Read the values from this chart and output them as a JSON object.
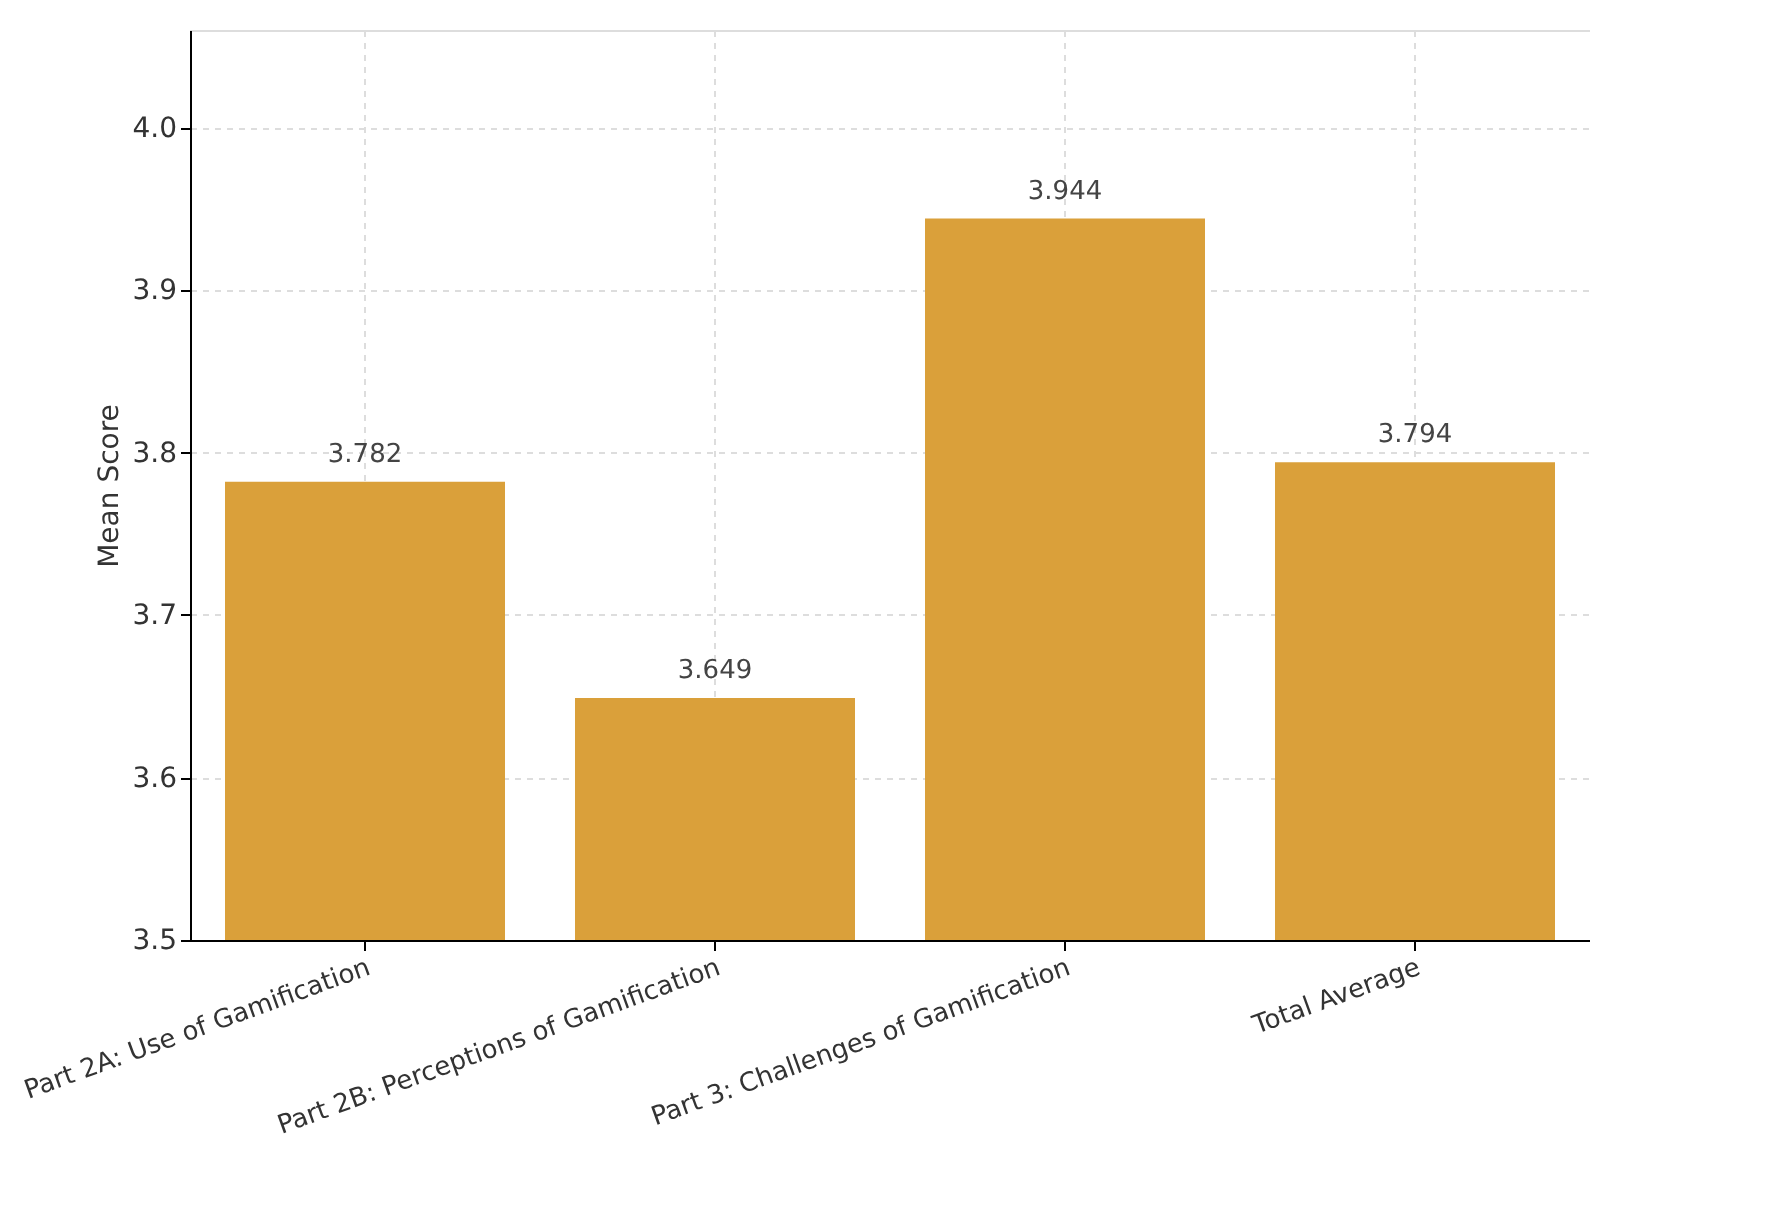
{
  "chart_data": {
    "type": "bar",
    "ylabel": "Mean Score",
    "categories": [
      "Part 2A: Use of Gamification",
      "Part 2B: Perceptions of Gamification",
      "Part 3: Challenges of Gamification",
      "Total Average"
    ],
    "values": [
      3.782,
      3.649,
      3.944,
      3.794
    ],
    "color": "#daa03a",
    "ylim": [
      3.5,
      4.06
    ],
    "yticks": [
      3.5,
      3.6,
      3.7,
      3.8,
      3.9,
      {
        "value": 4,
        "label": "4.0"
      }
    ],
    "grid": true,
    "data_labels": true
  }
}
